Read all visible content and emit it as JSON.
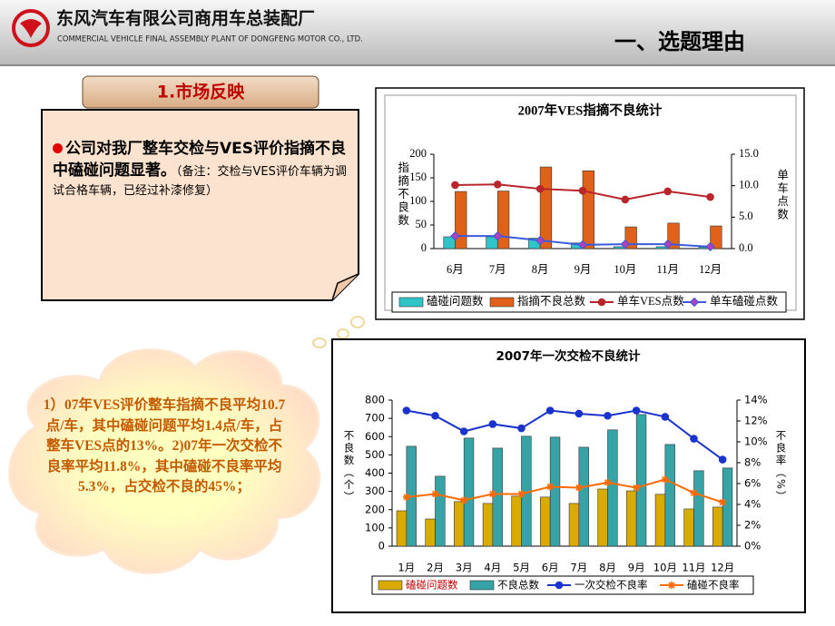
{
  "header": {
    "company": "东风汽车有限公司商用车总装配厂",
    "company_en": "COMMERCIAL VEHICLE FINAL ASSEMBLY PLANT OF DONGFENG MOTOR CO., LTD.",
    "title": "一、选题理由"
  },
  "section": {
    "label": "1.市场反映",
    "note_bold": "公司对我厂整车交检与VES评价指摘不良中磕碰问题显著。",
    "note_small": "（备注：交检与VES评价车辆为调试合格车辆，已经过补漆修复）"
  },
  "callout": "1）07年VES评价整车指摘不良平均10.7点/车，其中磕碰问题平均1.4点/车，占整车VES点的13%。2)07年一次交检不良率平均11.8%，其中磕碰不良率平均5.3%，占交检不良的45%；",
  "chart_data": [
    {
      "type": "bar",
      "title": "2007年VES指摘不良统计",
      "y_label": "指摘不良数",
      "y2_label": "单车点数",
      "categories": [
        "6月",
        "7月",
        "8月",
        "9月",
        "10月",
        "11月",
        "12月"
      ],
      "ylim": [
        0,
        200
      ],
      "yticks": [
        0,
        50,
        100,
        150,
        200
      ],
      "y2lim": [
        0,
        15
      ],
      "y2ticks": [
        {
          "value": 0,
          "label": "0.0"
        },
        {
          "value": 5,
          "label": "5.0"
        },
        {
          "value": 10,
          "label": "10.0"
        },
        {
          "value": 15,
          "label": "15.0"
        }
      ],
      "grid": false,
      "series": [
        {
          "name": "磕碰问题数",
          "color": "#2ec4c8",
          "values": [
            25,
            25,
            22,
            12,
            4,
            4,
            3
          ]
        },
        {
          "name": "指摘不良总数",
          "color": "#e0621a",
          "values": [
            121,
            122,
            173,
            165,
            46,
            54,
            48
          ]
        },
        {
          "name": "单车VES点数",
          "color": "#b8262c",
          "type": "line",
          "marker": "circle",
          "axis": "y2",
          "values": [
            10.1,
            10.2,
            9.5,
            9.2,
            7.8,
            9.1,
            8.2
          ]
        },
        {
          "name": "单车磕碰点数",
          "color": "#3b5bdb",
          "type": "line",
          "marker": "diamond",
          "axis": "y2",
          "values": [
            2.0,
            2.0,
            1.3,
            0.6,
            0.7,
            0.7,
            0.3
          ]
        }
      ]
    },
    {
      "type": "bar",
      "title": "2007年一次交检不良统计",
      "y_label": "不良数（个）",
      "y2_label": "不良率（%）",
      "categories": [
        "1月",
        "2月",
        "3月",
        "4月",
        "5月",
        "6月",
        "7月",
        "8月",
        "9月",
        "10月",
        "11月",
        "12月"
      ],
      "ylim": [
        0,
        800
      ],
      "yticks": [
        0,
        100,
        200,
        300,
        400,
        500,
        600,
        700,
        800
      ],
      "y2lim": [
        0,
        14
      ],
      "y2ticks": [
        {
          "value": 0,
          "label": "0%"
        },
        {
          "value": 2,
          "label": "2%"
        },
        {
          "value": 4,
          "label": "4%"
        },
        {
          "value": 6,
          "label": "6%"
        },
        {
          "value": 8,
          "label": "8%"
        },
        {
          "value": 10,
          "label": "10%"
        },
        {
          "value": 12,
          "label": "12%"
        },
        {
          "value": 14,
          "label": "14%"
        }
      ],
      "grid": false,
      "series": [
        {
          "name": "磕碰问题数",
          "color": "#d9ab00",
          "values": [
            194,
            149,
            244,
            234,
            274,
            269,
            234,
            313,
            303,
            284,
            204,
            214
          ]
        },
        {
          "name": "不良总数",
          "color": "#36a3a6",
          "values": [
            547,
            383,
            592,
            537,
            602,
            597,
            542,
            637,
            721,
            557,
            413,
            428
          ]
        },
        {
          "name": "一次交检不良率",
          "color": "#1a33cc",
          "type": "line",
          "marker": "circle",
          "axis": "y2",
          "values": [
            13.0,
            12.5,
            11.0,
            11.7,
            11.3,
            13.0,
            12.7,
            12.5,
            13.0,
            12.4,
            10.3,
            8.3
          ]
        },
        {
          "name": "磕碰不良率",
          "color": "#ff6a00",
          "type": "line",
          "marker": "star",
          "axis": "y2",
          "values": [
            4.7,
            5.0,
            4.4,
            5.0,
            5.0,
            5.7,
            5.6,
            6.1,
            5.6,
            6.4,
            5.1,
            4.2
          ]
        }
      ]
    }
  ]
}
